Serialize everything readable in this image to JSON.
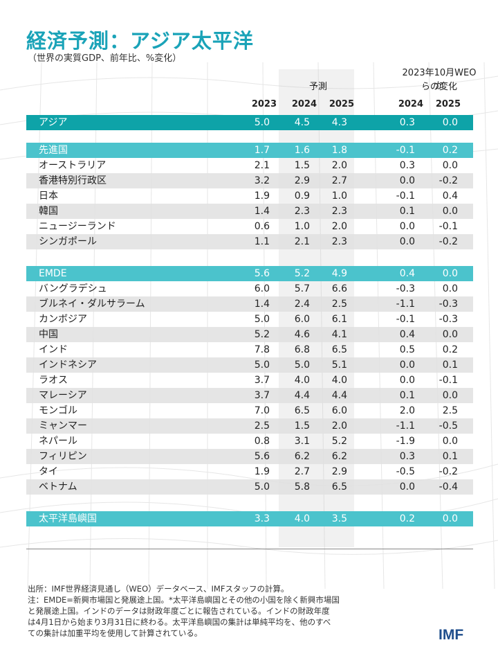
{
  "title": "経済予測：アジア太平洋",
  "subtitle": "（世界の実質GDP、前年比、%変化）",
  "headers": {
    "forecast_label": "予測",
    "change_label_line1": "2023年10月WEOか",
    "change_label_line2": "らの変化",
    "years": [
      "2023",
      "2024",
      "2025",
      "2024",
      "2025"
    ]
  },
  "rows": [
    {
      "name": "アジア",
      "type": "asia",
      "v": [
        "5.0",
        "4.5",
        "4.3",
        "0.3",
        "0.0"
      ]
    },
    {
      "name": "先進国",
      "type": "grp",
      "v": [
        "1.7",
        "1.6",
        "1.8",
        "-0.1",
        "0.2"
      ]
    },
    {
      "name": "オーストラリア",
      "type": "row",
      "v": [
        "2.1",
        "1.5",
        "2.0",
        "0.3",
        "0.0"
      ]
    },
    {
      "name": "香港特別行政区",
      "type": "alt",
      "v": [
        "3.2",
        "2.9",
        "2.7",
        "0.0",
        "-0.2"
      ]
    },
    {
      "name": "日本",
      "type": "row",
      "v": [
        "1.9",
        "0.9",
        "1.0",
        "-0.1",
        "0.4"
      ]
    },
    {
      "name": "韓国",
      "type": "alt",
      "v": [
        "1.4",
        "2.3",
        "2.3",
        "0.1",
        "0.0"
      ]
    },
    {
      "name": "ニュージーランド",
      "type": "row",
      "v": [
        "0.6",
        "1.0",
        "2.0",
        "0.0",
        "-0.1"
      ]
    },
    {
      "name": "シンガポール",
      "type": "alt",
      "v": [
        "1.1",
        "2.1",
        "2.3",
        "0.0",
        "-0.2"
      ]
    },
    {
      "name": "EMDE",
      "type": "grp",
      "v": [
        "5.6",
        "5.2",
        "4.9",
        "0.4",
        "0.0"
      ]
    },
    {
      "name": "バングラデシュ",
      "type": "row",
      "v": [
        "6.0",
        "5.7",
        "6.6",
        "-0.3",
        "0.0"
      ]
    },
    {
      "name": "ブルネイ・ダルサラーム",
      "type": "alt",
      "v": [
        "1.4",
        "2.4",
        "2.5",
        "-1.1",
        "-0.3"
      ]
    },
    {
      "name": "カンボジア",
      "type": "row",
      "v": [
        "5.0",
        "6.0",
        "6.1",
        "-0.1",
        "-0.3"
      ]
    },
    {
      "name": "中国",
      "type": "alt",
      "v": [
        "5.2",
        "4.6",
        "4.1",
        "0.4",
        "0.0"
      ]
    },
    {
      "name": "インド",
      "type": "row",
      "v": [
        "7.8",
        "6.8",
        "6.5",
        "0.5",
        "0.2"
      ]
    },
    {
      "name": "インドネシア",
      "type": "alt",
      "v": [
        "5.0",
        "5.0",
        "5.1",
        "0.0",
        "0.1"
      ]
    },
    {
      "name": "ラオス",
      "type": "row",
      "v": [
        "3.7",
        "4.0",
        "4.0",
        "0.0",
        "-0.1"
      ]
    },
    {
      "name": "マレーシア",
      "type": "alt",
      "v": [
        "3.7",
        "4.4",
        "4.4",
        "0.1",
        "0.0"
      ]
    },
    {
      "name": "モンゴル",
      "type": "row",
      "v": [
        "7.0",
        "6.5",
        "6.0",
        "2.0",
        "2.5"
      ]
    },
    {
      "name": "ミャンマー",
      "type": "alt",
      "v": [
        "2.5",
        "1.5",
        "2.0",
        "-1.1",
        "-0.5"
      ]
    },
    {
      "name": "ネパール",
      "type": "row",
      "v": [
        "0.8",
        "3.1",
        "5.2",
        "-1.9",
        "0.0"
      ]
    },
    {
      "name": "フィリピン",
      "type": "alt",
      "v": [
        "5.6",
        "6.2",
        "6.2",
        "0.3",
        "0.1"
      ]
    },
    {
      "name": "タイ",
      "type": "row",
      "v": [
        "1.9",
        "2.7",
        "2.9",
        "-0.5",
        "-0.2"
      ]
    },
    {
      "name": "ベトナム",
      "type": "alt",
      "v": [
        "5.0",
        "5.8",
        "6.5",
        "0.0",
        "-0.4"
      ]
    },
    {
      "name": "太平洋島嶼国",
      "type": "grp",
      "v": [
        "3.3",
        "4.0",
        "3.5",
        "0.2",
        "0.0"
      ]
    }
  ],
  "notes": [
    "出所：IMF世界経済見通し（WEO）データベース、IMFスタッフの計算。",
    "注：EMDE=新興市場国と発展途上国。*太平洋島嶼国とその他の小国を除く新興市場国",
    "と発展途上国。インドのデータは財政年度ごとに報告されている。インドの財政年度",
    "は4月1日から始まり3月31日に終わる。太平洋島嶼国の集計は単純平均を、他のすべ",
    "ての集計は加重平均を使用して計算されている。"
  ],
  "logo": "IMF"
}
